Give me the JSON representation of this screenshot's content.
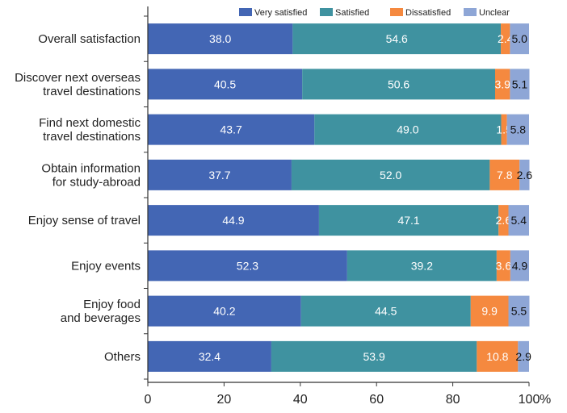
{
  "chart_data": {
    "type": "bar",
    "orientation": "horizontal",
    "stacked": true,
    "categories": [
      [
        "Overall satisfaction"
      ],
      [
        "Discover next overseas",
        "travel destinations"
      ],
      [
        "Find next domestic",
        "travel destinations"
      ],
      [
        "Obtain information",
        "for study-abroad"
      ],
      [
        "Enjoy sense of travel"
      ],
      [
        "Enjoy events"
      ],
      [
        "Enjoy food",
        "and beverages"
      ],
      [
        "Others"
      ]
    ],
    "series": [
      {
        "name": "Very satisfied",
        "color": "#4366b4",
        "values": [
          38.0,
          40.5,
          43.7,
          37.7,
          44.9,
          52.3,
          40.2,
          32.4
        ],
        "labels": [
          "38.0",
          "40.5",
          "43.7",
          "37.7",
          "44.9",
          "52.3",
          "40.2",
          "32.4"
        ]
      },
      {
        "name": "Satisfied",
        "color": "#3f92a0",
        "values": [
          54.6,
          50.6,
          49.0,
          52.0,
          47.1,
          39.2,
          44.5,
          53.9
        ],
        "labels": [
          "54.6",
          "50.6",
          "49.0",
          "52.0",
          "47.1",
          "39.2",
          "44.5",
          "53.9"
        ]
      },
      {
        "name": "Dissatisfied",
        "color": "#f5893f",
        "values": [
          2.4,
          3.9,
          1.5,
          7.8,
          2.6,
          3.6,
          9.9,
          10.8
        ],
        "labels": [
          "2.4",
          "3.9",
          "1.5",
          "7.8",
          "2.6",
          "3.6",
          "9.9",
          "10.8"
        ]
      },
      {
        "name": "Unclear",
        "color": "#8ea6d6",
        "values": [
          5.0,
          5.1,
          5.8,
          2.6,
          5.4,
          4.9,
          5.5,
          2.9
        ],
        "labels": [
          "5.0",
          "5.1",
          "5.8",
          "2.6",
          "5.4",
          "4.9",
          "5.5",
          "2.9"
        ]
      }
    ],
    "xlim": [
      0,
      100
    ],
    "xticks": [
      "0",
      "20",
      "40",
      "60",
      "80",
      "100"
    ],
    "x_unit": "%",
    "legend_position": "top",
    "grid": false
  }
}
